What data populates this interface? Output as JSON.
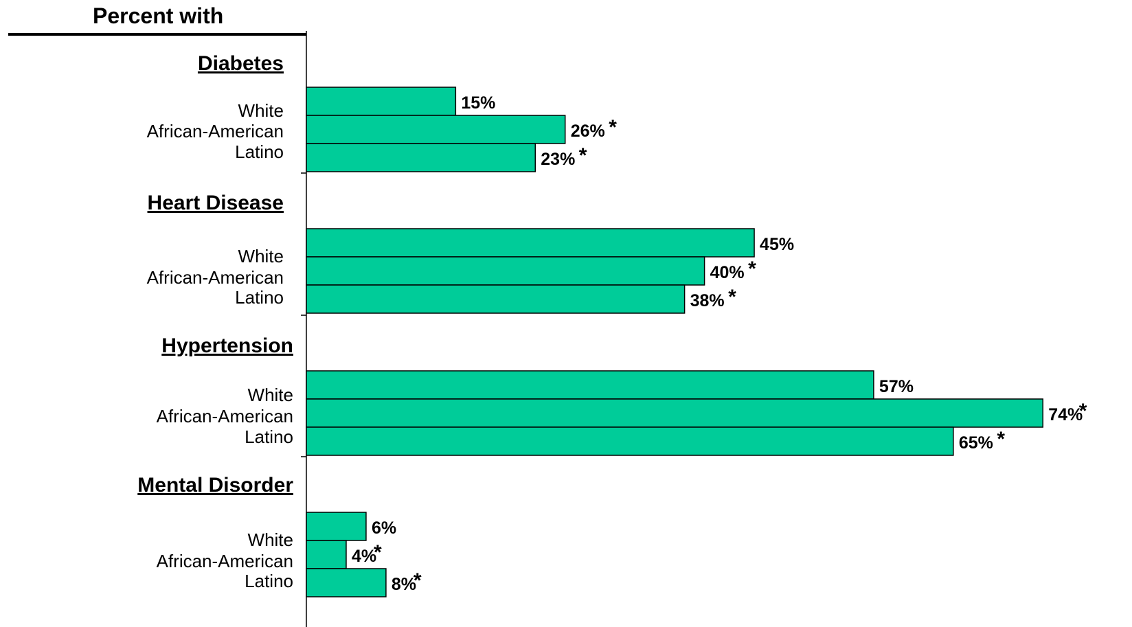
{
  "chart_data": {
    "type": "bar",
    "orientation": "horizontal",
    "title": "Percent with",
    "groups": [
      {
        "name": "Diabetes",
        "bars": [
          {
            "category": "White",
            "value": 15,
            "label": "15%",
            "significant": false
          },
          {
            "category": "African-American",
            "value": 26,
            "label": "26%",
            "significant": true
          },
          {
            "category": "Latino",
            "value": 23,
            "label": "23%",
            "significant": true
          }
        ]
      },
      {
        "name": "Heart Disease",
        "bars": [
          {
            "category": "White",
            "value": 45,
            "label": "45%",
            "significant": false
          },
          {
            "category": "African-American",
            "value": 40,
            "label": "40%",
            "significant": true
          },
          {
            "category": "Latino",
            "value": 38,
            "label": "38%",
            "significant": true
          }
        ]
      },
      {
        "name": "Hypertension",
        "bars": [
          {
            "category": "White",
            "value": 57,
            "label": "57%",
            "significant": false
          },
          {
            "category": "African-American",
            "value": 74,
            "label": "74%",
            "significant": true
          },
          {
            "category": "Latino",
            "value": 65,
            "label": "65%",
            "significant": true
          }
        ]
      },
      {
        "name": "Mental Disorder",
        "bars": [
          {
            "category": "White",
            "value": 6,
            "label": "6%",
            "significant": false
          },
          {
            "category": "African-American",
            "value": 4,
            "label": "4%",
            "significant": true
          },
          {
            "category": "Latino",
            "value": 8,
            "label": "8%",
            "significant": true
          }
        ]
      }
    ],
    "significance_marker": "*",
    "xlim": [
      0,
      100
    ],
    "grid": false,
    "colors": {
      "bar_fill": "#00CC99",
      "bar_stroke": "#000000"
    }
  }
}
